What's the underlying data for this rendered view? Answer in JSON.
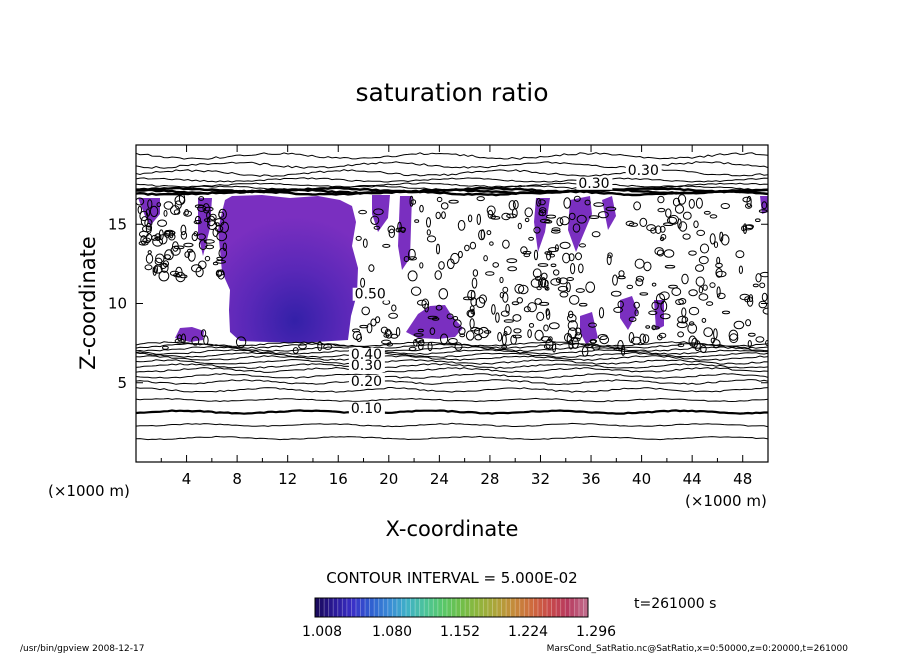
{
  "chart_data": {
    "type": "contour",
    "title": "saturation ratio",
    "xlabel": "X-coordinate",
    "ylabel": "Z-coordinate",
    "x_unit_left": "(×1000 m)",
    "x_unit_right": "(×1000 m)",
    "xlim": [
      0,
      50
    ],
    "ylim": [
      0,
      20
    ],
    "x_ticks": [
      "4",
      "8",
      "12",
      "16",
      "20",
      "24",
      "28",
      "32",
      "36",
      "40",
      "44",
      "48"
    ],
    "y_ticks": [
      "5",
      "10",
      "15"
    ],
    "contour_labels": [
      {
        "text": "0.30",
        "x": 38.9,
        "z": 18.1
      },
      {
        "text": "0.30",
        "x": 35.0,
        "z": 17.3
      },
      {
        "text": "0.50",
        "x": 17.3,
        "z": 10.3
      },
      {
        "text": "0.40",
        "x": 17.0,
        "z": 6.5
      },
      {
        "text": "0.30",
        "x": 17.0,
        "z": 5.8
      },
      {
        "text": "0.20",
        "x": 17.0,
        "z": 4.8
      },
      {
        "text": "0.10",
        "x": 17.0,
        "z": 3.1
      }
    ],
    "contour_interval_text": "CONTOUR INTERVAL = 5.000E-02",
    "colorbar": {
      "ticks": [
        "1.008",
        "1.080",
        "1.152",
        "1.224",
        "1.296"
      ],
      "colors": [
        "#1a0a5e",
        "#2b1a9a",
        "#3a30c8",
        "#2f5fd0",
        "#3a8ad6",
        "#3fb0c8",
        "#4cc39a",
        "#58c86a",
        "#6fbf4a",
        "#8fb53c",
        "#aea43a",
        "#c58a3a",
        "#cf6a3e",
        "#c84a4a",
        "#b73a5e",
        "#c06a8a"
      ]
    },
    "time_label": "t=261000 s",
    "fill_color_main": "#7a2fc0",
    "fill_color_core": "#3a30a8"
  },
  "footer": {
    "left": "/usr/bin/gpview   2008-12-17",
    "right": "MarsCond_SatRatio.nc@SatRatio,x=0:50000,z=0:20000,t=261000"
  }
}
